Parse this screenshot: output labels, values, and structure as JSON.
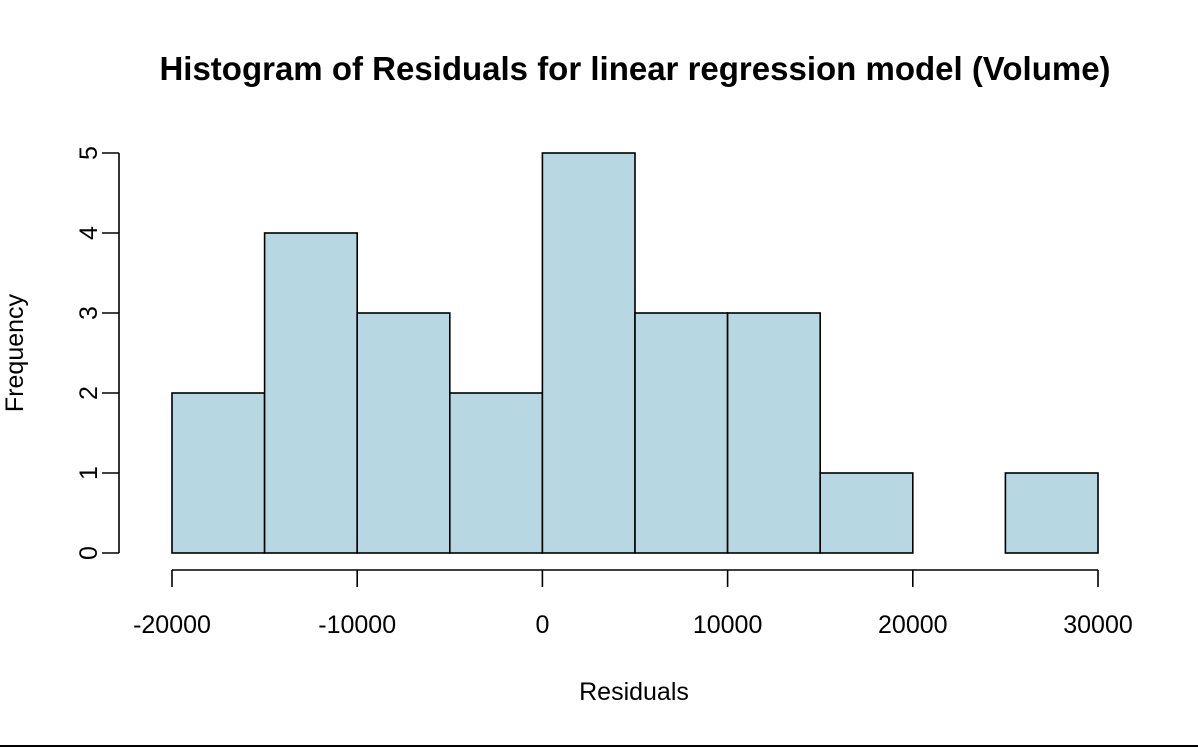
{
  "chart_data": {
    "type": "bar",
    "title": "Histogram of Residuals for linear regression model (Volume)",
    "xlabel": "Residuals",
    "ylabel": "Frequency",
    "bins": [
      {
        "from": -20000,
        "to": -15000,
        "count": 2
      },
      {
        "from": -15000,
        "to": -10000,
        "count": 4
      },
      {
        "from": -10000,
        "to": -5000,
        "count": 3
      },
      {
        "from": -5000,
        "to": 0,
        "count": 2
      },
      {
        "from": 0,
        "to": 5000,
        "count": 5
      },
      {
        "from": 5000,
        "to": 10000,
        "count": 3
      },
      {
        "from": 10000,
        "to": 15000,
        "count": 3
      },
      {
        "from": 15000,
        "to": 20000,
        "count": 1
      },
      {
        "from": 20000,
        "to": 25000,
        "count": 0
      },
      {
        "from": 25000,
        "to": 30000,
        "count": 1
      }
    ],
    "x_ticks": [
      "-20000",
      "-10000",
      "0",
      "10000",
      "20000",
      "30000"
    ],
    "x_tick_values": [
      -20000,
      -10000,
      0,
      10000,
      20000,
      30000
    ],
    "y_ticks": [
      "0",
      "1",
      "2",
      "3",
      "4",
      "5"
    ],
    "y_tick_values": [
      0,
      1,
      2,
      3,
      4,
      5
    ],
    "xlim": [
      -20000,
      30000
    ],
    "ylim": [
      0,
      5
    ],
    "grid": false,
    "legend": "none",
    "colors": {
      "bar_fill": "#b7d8e3",
      "bar_stroke": "#000000"
    }
  }
}
